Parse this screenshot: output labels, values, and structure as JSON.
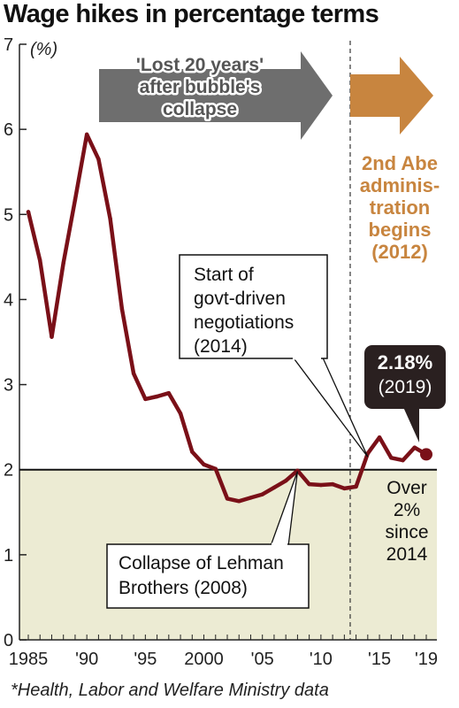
{
  "title": "Wage hikes in percentage terms",
  "footnote": "*Health, Labor and Welfare Ministry data",
  "chart_data": {
    "type": "line",
    "ylabel": "(%)",
    "ylim": [
      0,
      7
    ],
    "xlim": [
      1985,
      2019
    ],
    "y_ticks": [
      "0",
      "1",
      "2",
      "3",
      "4",
      "5",
      "6",
      "7"
    ],
    "x_ticks": [
      {
        "year": 1985,
        "label": "1985"
      },
      {
        "year": 1990,
        "label": "'90"
      },
      {
        "year": 1995,
        "label": "'95"
      },
      {
        "year": 2000,
        "label": "2000"
      },
      {
        "year": 2005,
        "label": "'05"
      },
      {
        "year": 2010,
        "label": "'10"
      },
      {
        "year": 2015,
        "label": "'15"
      },
      {
        "year": 2019,
        "label": "'19"
      }
    ],
    "x": [
      1985,
      1986,
      1987,
      1988,
      1989,
      1990,
      1991,
      1992,
      1993,
      1994,
      1995,
      1996,
      1997,
      1998,
      1999,
      2000,
      2001,
      2002,
      2003,
      2004,
      2005,
      2006,
      2007,
      2008,
      2009,
      2010,
      2011,
      2012,
      2013,
      2014,
      2015,
      2016,
      2017,
      2018,
      2019
    ],
    "values": [
      5.03,
      4.46,
      3.56,
      4.43,
      5.17,
      5.94,
      5.65,
      4.95,
      3.89,
      3.13,
      2.83,
      2.86,
      2.9,
      2.66,
      2.21,
      2.06,
      2.01,
      1.66,
      1.63,
      1.67,
      1.71,
      1.79,
      1.87,
      1.99,
      1.83,
      1.82,
      1.83,
      1.78,
      1.8,
      2.19,
      2.38,
      2.14,
      2.11,
      2.26,
      2.18
    ],
    "line_color": "#7a1018",
    "reference_line": 2,
    "reference_fill": "#ecebd3",
    "divider_year": 2012.5,
    "last_point": {
      "value_label": "2.18%",
      "year_label": "(2019)"
    },
    "arrows": [
      {
        "lines": [
          "'Lost 20 years'",
          "after bubble's",
          "collapse"
        ],
        "color": "#6e6e6e"
      },
      {
        "color": "#c8853f"
      }
    ],
    "abe_label": [
      "2nd Abe",
      "adminis-",
      "tration",
      "begins",
      "(2012)"
    ],
    "callouts": [
      {
        "lines": [
          "Start of",
          "govt-driven",
          "negotiations",
          "(2014)"
        ],
        "target_year": 2014
      },
      {
        "lines": [
          "Collapse of Lehman",
          "Brothers (2008)"
        ],
        "target_year": 2008
      }
    ],
    "over_label": [
      "Over",
      "2%",
      "since",
      "2014"
    ]
  }
}
